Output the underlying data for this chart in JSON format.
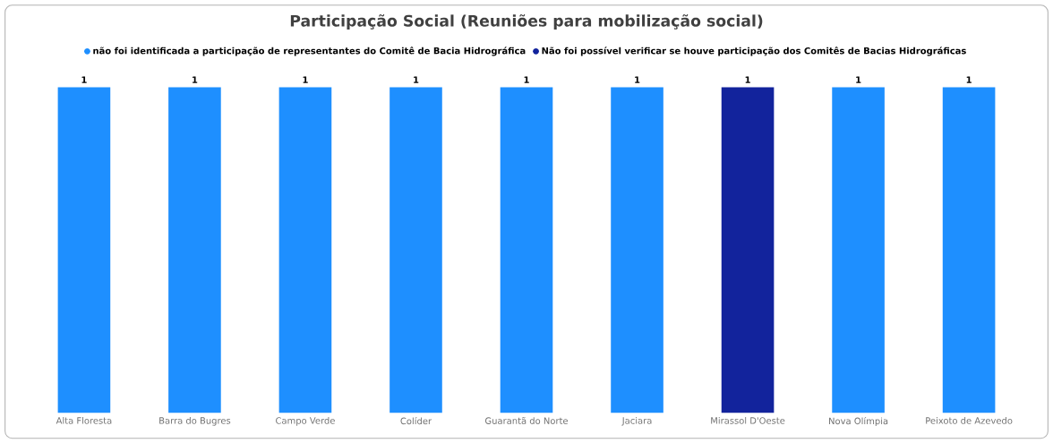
{
  "chart_data": {
    "type": "bar",
    "title": "Participação Social (Reuniões para mobilização social)",
    "categories": [
      "Alta Floresta",
      "Barra do Bugres",
      "Campo Verde",
      "Colíder",
      "Guarantã do Norte",
      "Jaciara",
      "Mirassol D'Oeste",
      "Nova Olímpia",
      "Peixoto de Azevedo"
    ],
    "series": [
      {
        "name": "não foi identificada a participação de representantes do Comitê de Bacia Hidrográfica",
        "color": "#1e8fff",
        "values": [
          1,
          1,
          1,
          1,
          1,
          1,
          null,
          1,
          1
        ]
      },
      {
        "name": "Não foi possível verificar se houve participação dos Comitês de Bacias Hidrográficas",
        "color": "#12239c",
        "values": [
          null,
          null,
          null,
          null,
          null,
          null,
          1,
          null,
          null
        ]
      }
    ],
    "stacked": true,
    "data_labels": true,
    "legend": "top"
  }
}
